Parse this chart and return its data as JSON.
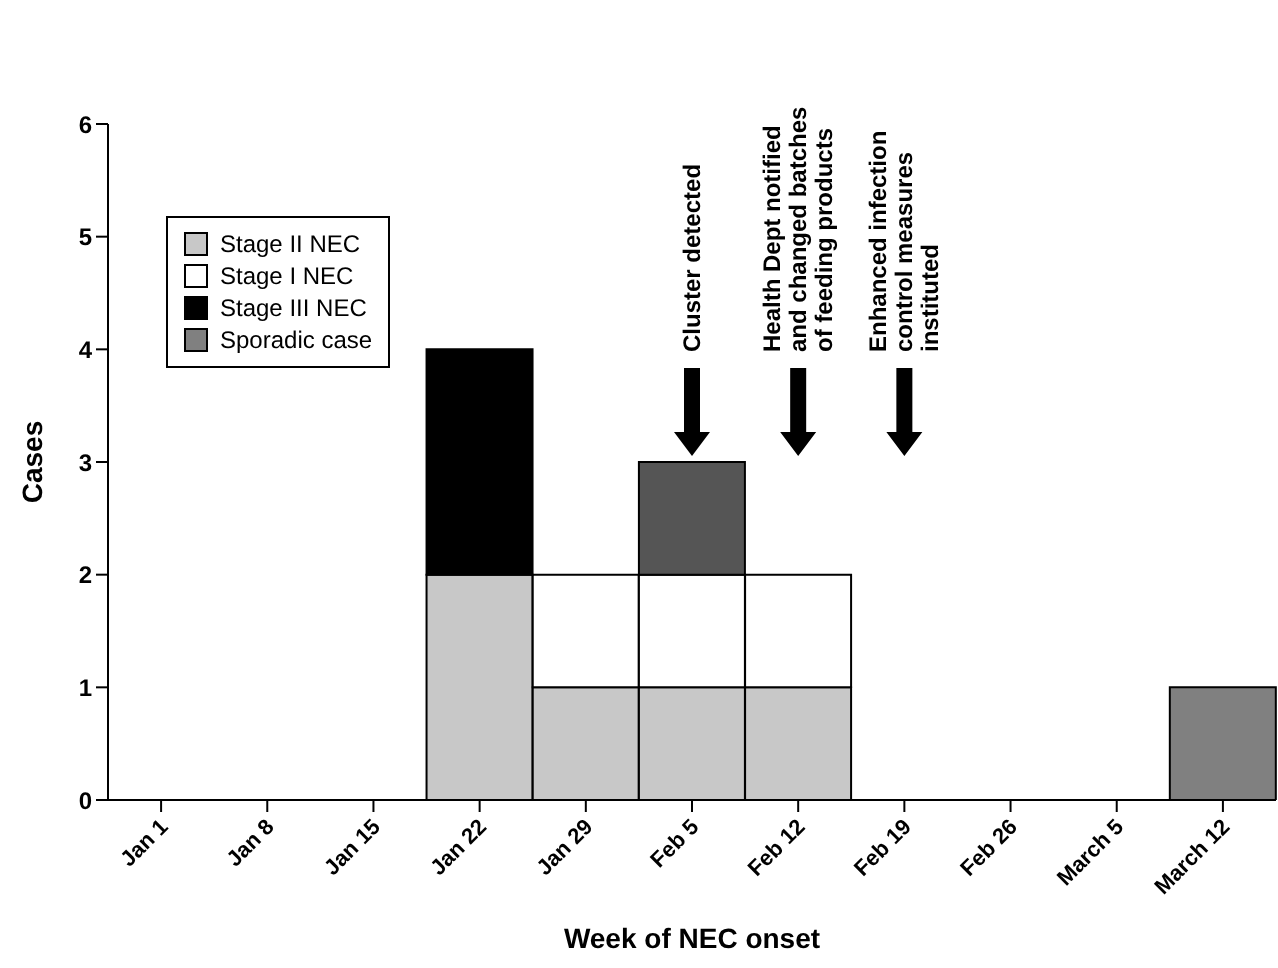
{
  "chart_data": {
    "type": "bar",
    "stacked": true,
    "xlabel": "Week of NEC onset",
    "ylabel": "Cases",
    "categories": [
      "Jan 1",
      "Jan 8",
      "Jan 15",
      "Jan 22",
      "Jan 29",
      "Feb 5",
      "Feb 12",
      "Feb 19",
      "Feb 26",
      "March 5",
      "March 12"
    ],
    "series": [
      {
        "name": "Stage II NEC",
        "color": "#c8c8c8",
        "values": [
          null,
          null,
          null,
          2,
          1,
          1,
          1,
          null,
          null,
          null,
          null
        ]
      },
      {
        "name": "Stage I NEC",
        "color": "#ffffff",
        "values": [
          null,
          null,
          null,
          null,
          1,
          1,
          1,
          null,
          null,
          null,
          null
        ]
      },
      {
        "name": "Stage III NEC",
        "color": "#000000",
        "colors": [
          null,
          null,
          null,
          "#000000",
          null,
          "#555555",
          null,
          null,
          null,
          null,
          null
        ],
        "values": [
          null,
          null,
          null,
          2,
          null,
          1,
          null,
          null,
          null,
          null,
          null
        ]
      },
      {
        "name": "Sporadic case",
        "color": "#808080",
        "values": [
          null,
          null,
          null,
          null,
          null,
          null,
          null,
          null,
          null,
          null,
          1
        ]
      }
    ],
    "ylim": [
      0,
      6
    ],
    "yticks": [
      0,
      1,
      2,
      3,
      4,
      5,
      6
    ],
    "grid": false,
    "legend": "top left",
    "annotations": [
      "Cluster detected",
      "Health Dept notified\nand changed batches\nof feeding products",
      "Enhanced infection\ncontrol measures\ninstituted"
    ]
  }
}
